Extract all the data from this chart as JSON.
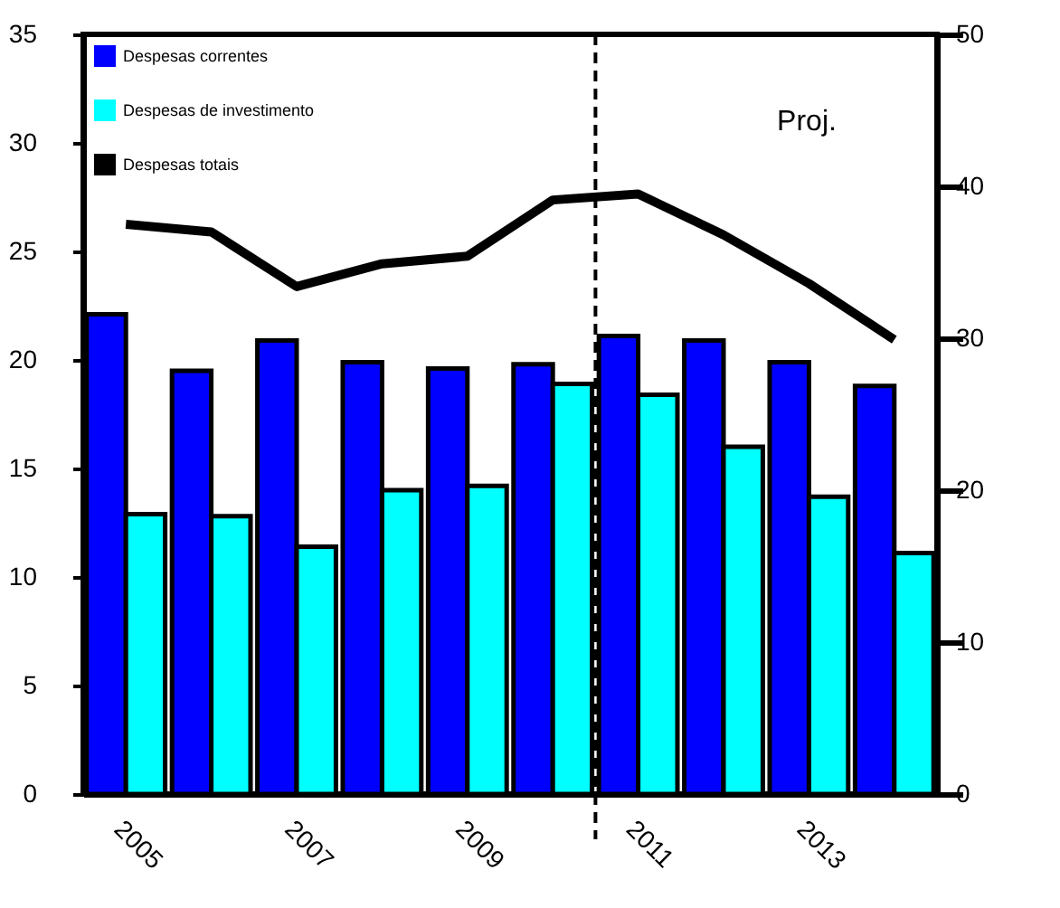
{
  "chart_data": {
    "type": "bar",
    "x": [
      2005,
      2006,
      2007,
      2008,
      2009,
      2010,
      2011,
      2012,
      2013,
      2014
    ],
    "xlim": [
      2004.5,
      2014.5
    ],
    "xticks": [
      2005,
      2007,
      2009,
      2011,
      2013
    ],
    "ylim": [
      0,
      35
    ],
    "yticks": [
      0,
      5,
      10,
      15,
      20,
      25,
      30,
      35
    ],
    "y2lim": [
      0,
      50
    ],
    "y2ticks": [
      0,
      10,
      20,
      30,
      40,
      50
    ],
    "series": [
      {
        "name": "Despesas correntes",
        "color": "#0000ff",
        "values": [
          22.1,
          19.5,
          20.9,
          19.9,
          19.6,
          19.8,
          21.1,
          20.9,
          19.9,
          18.8
        ]
      },
      {
        "name": "Despesas de investimento",
        "color": "#00ffff",
        "values": [
          12.9,
          12.8,
          11.4,
          14.0,
          14.2,
          18.9,
          18.4,
          16.0,
          13.7,
          11.1
        ]
      },
      {
        "name": "Despesas totais",
        "color": "#000000",
        "type": "line",
        "axis": "y2",
        "values": [
          37.5,
          37.0,
          33.4,
          34.9,
          35.4,
          39.1,
          39.5,
          36.8,
          33.6,
          29.9
        ]
      }
    ],
    "ref_lines": [
      {
        "axis": "x",
        "value": 2010.5,
        "line_style": "dashed",
        "color": "#000000"
      }
    ],
    "annotations": [
      "Proj."
    ],
    "legend": "top left",
    "grid": false
  }
}
